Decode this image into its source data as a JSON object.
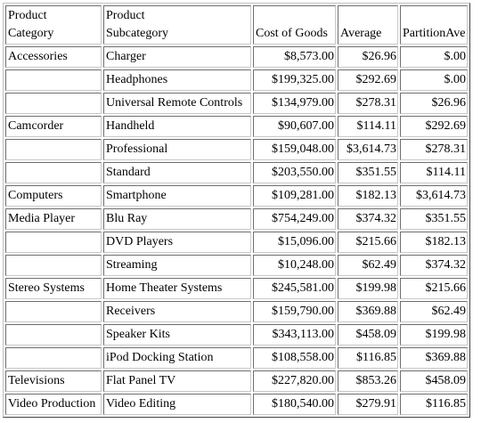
{
  "headers": {
    "category": [
      "Product",
      "Category"
    ],
    "subcategory": [
      "Product",
      "Subcategory"
    ],
    "cost": "Cost of Goods",
    "average": "Average",
    "partition": "PartitionAve"
  },
  "rows": [
    {
      "category": "Accessories",
      "subcategory": "Charger",
      "cost": "$8,573.00",
      "average": "$26.96",
      "partition": "$.00"
    },
    {
      "category": "",
      "subcategory": "Headphones",
      "cost": "$199,325.00",
      "average": "$292.69",
      "partition": "$.00"
    },
    {
      "category": "",
      "subcategory": "Universal Remote Controls",
      "cost": "$134,979.00",
      "average": "$278.31",
      "partition": "$26.96"
    },
    {
      "category": "Camcorder",
      "subcategory": "Handheld",
      "cost": "$90,607.00",
      "average": "$114.11",
      "partition": "$292.69"
    },
    {
      "category": "",
      "subcategory": "Professional",
      "cost": "$159,048.00",
      "average": "$3,614.73",
      "partition": "$278.31"
    },
    {
      "category": "",
      "subcategory": "Standard",
      "cost": "$203,550.00",
      "average": "$351.55",
      "partition": "$114.11"
    },
    {
      "category": "Computers",
      "subcategory": "Smartphone",
      "cost": "$109,281.00",
      "average": "$182.13",
      "partition": "$3,614.73"
    },
    {
      "category": "Media Player",
      "subcategory": "Blu Ray",
      "cost": "$754,249.00",
      "average": "$374.32",
      "partition": "$351.55"
    },
    {
      "category": "",
      "subcategory": "DVD Players",
      "cost": "$15,096.00",
      "average": "$215.66",
      "partition": "$182.13"
    },
    {
      "category": "",
      "subcategory": "Streaming",
      "cost": "$10,248.00",
      "average": "$62.49",
      "partition": "$374.32"
    },
    {
      "category": "Stereo Systems",
      "subcategory": "Home Theater Systems",
      "cost": "$245,581.00",
      "average": "$199.98",
      "partition": "$215.66"
    },
    {
      "category": "",
      "subcategory": "Receivers",
      "cost": "$159,790.00",
      "average": "$369.88",
      "partition": "$62.49"
    },
    {
      "category": "",
      "subcategory": "Speaker Kits",
      "cost": "$343,113.00",
      "average": "$458.09",
      "partition": "$199.98"
    },
    {
      "category": "",
      "subcategory": "iPod Docking Station",
      "cost": "$108,558.00",
      "average": "$116.85",
      "partition": "$369.88"
    },
    {
      "category": "Televisions",
      "subcategory": "Flat Panel TV",
      "cost": "$227,820.00",
      "average": "$853.26",
      "partition": "$458.09"
    },
    {
      "category": "Video Production",
      "subcategory": "Video Editing",
      "cost": "$180,540.00",
      "average": "$279.91",
      "partition": "$116.85"
    }
  ]
}
